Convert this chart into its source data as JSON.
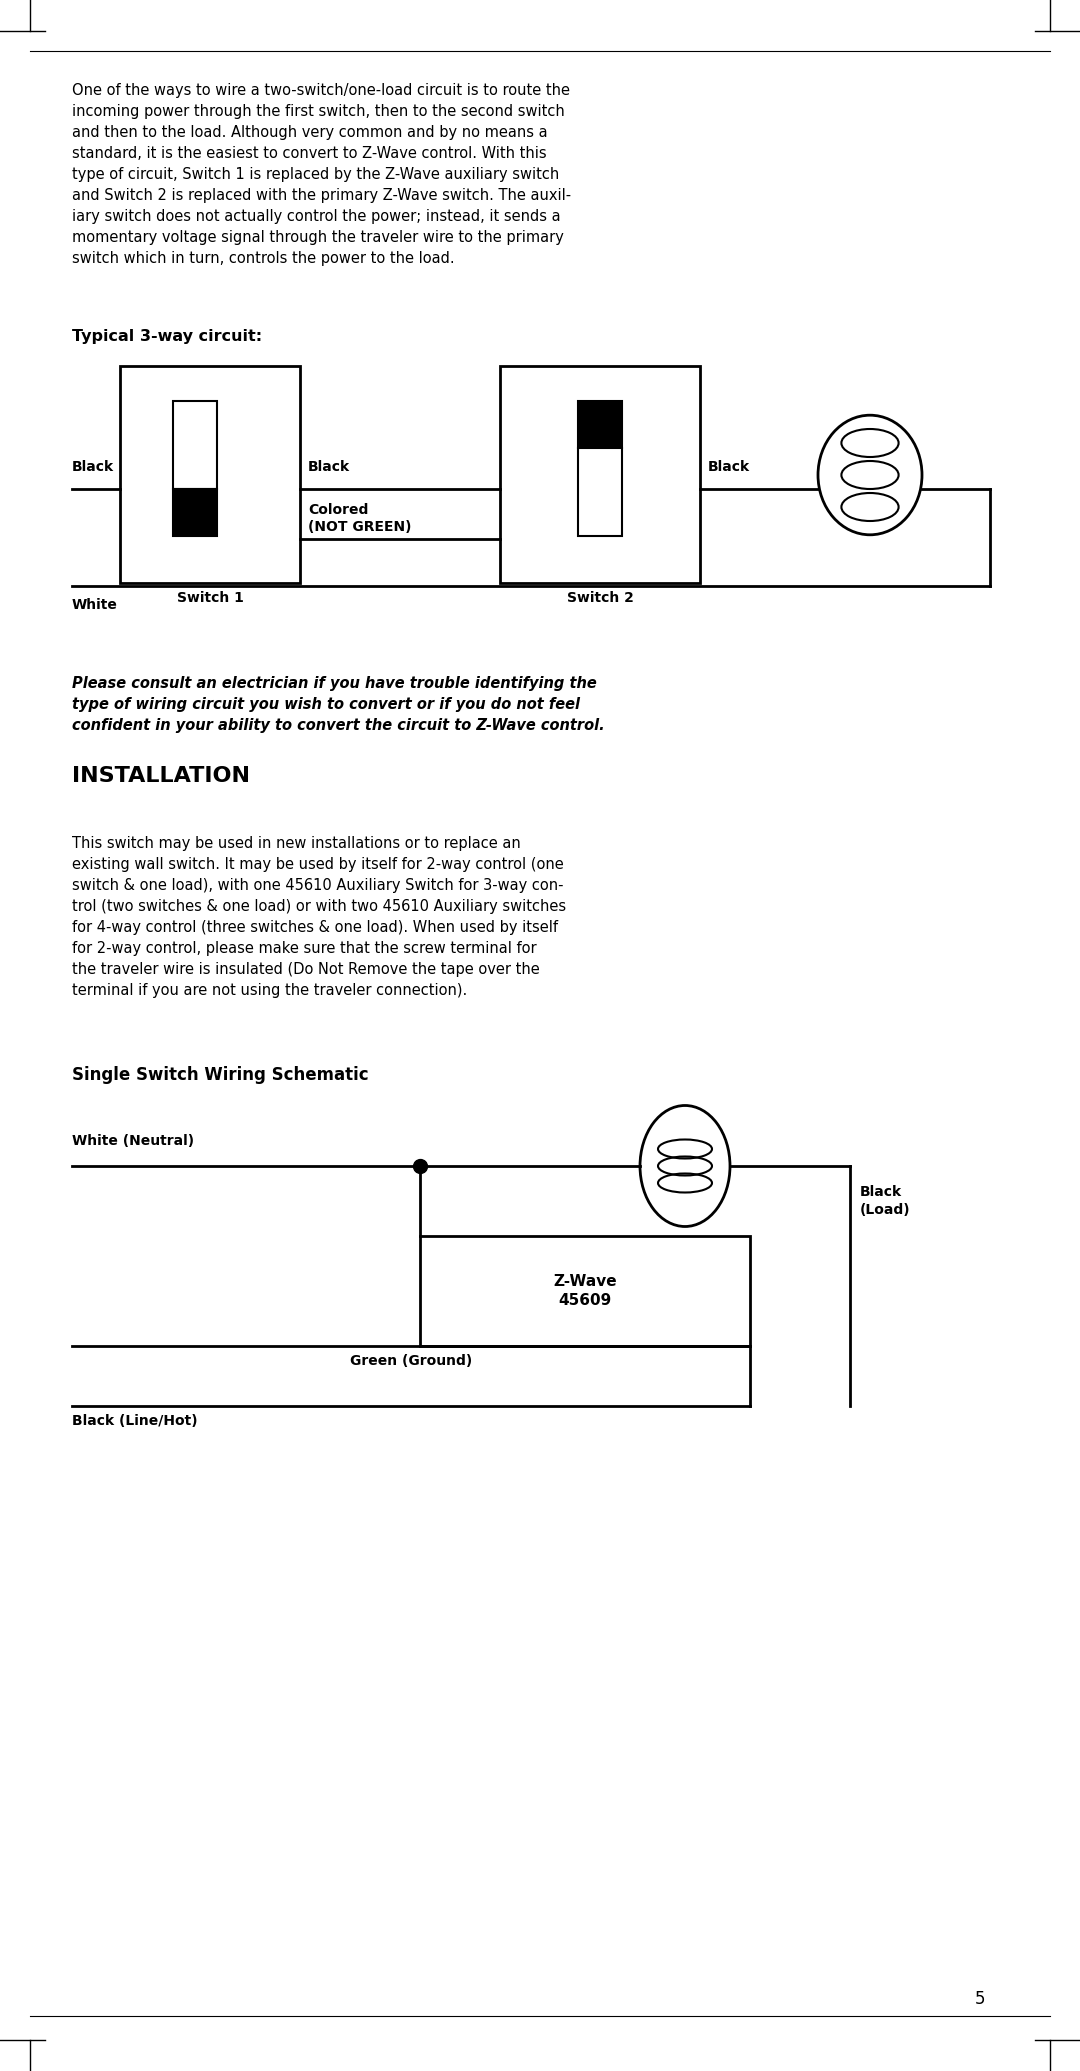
{
  "bg_color": "#ffffff",
  "text_color": "#000000",
  "page_number": "5",
  "wrapped1": "One of the ways to wire a two-switch/one-load circuit is to route the\nincoming power through the first switch, then to the second switch\nand then to the load. Although very common and by no means a\nstandard, it is the easiest to convert to Z-Wave control. With this\ntype of circuit, Switch 1 is replaced by the Z-Wave auxiliary switch\nand Switch 2 is replaced with the primary Z-Wave switch. The auxil-\niary switch does not actually control the power; instead, it sends a\nmomentary voltage signal through the traveler wire to the primary\nswitch which in turn, controls the power to the load.",
  "section1_title": "Typical 3-way circuit:",
  "switch1_label": "Switch 1",
  "switch2_label": "Switch 2",
  "black_label1": "Black",
  "black_label2": "Black",
  "black_label3": "Black",
  "white_label": "White",
  "colored_label": "Colored\n(NOT GREEN)",
  "italic_paragraph": "Please consult an electrician if you have trouble identifying the\ntype of wiring circuit you wish to convert or if you do not feel\nconfident in your ability to convert the circuit to Z-Wave control.",
  "section2_title": "INSTALLATION",
  "wrapped2": "This switch may be used in new installations or to replace an\nexisting wall switch. It may be used by itself for 2-way control (one\nswitch & one load), with one 45610 Auxiliary Switch for 3-way con-\ntrol (two switches & one load) or with two 45610 Auxiliary switches\nfor 4-way control (three switches & one load). When used by itself\nfor 2-way control, please make sure that the screw terminal for\nthe traveler wire is insulated (Do Not Remove the tape over the\nterminal if you are not using the traveler connection).",
  "section3_title": "Single Switch Wiring Schematic",
  "white_neutral_label": "White (Neutral)",
  "black_load_label": "Black\n(Load)",
  "green_ground_label": "Green (Ground)",
  "black_linehot_label": "Black (Line/Hot)",
  "zwave_label": "Z-Wave\n45609"
}
